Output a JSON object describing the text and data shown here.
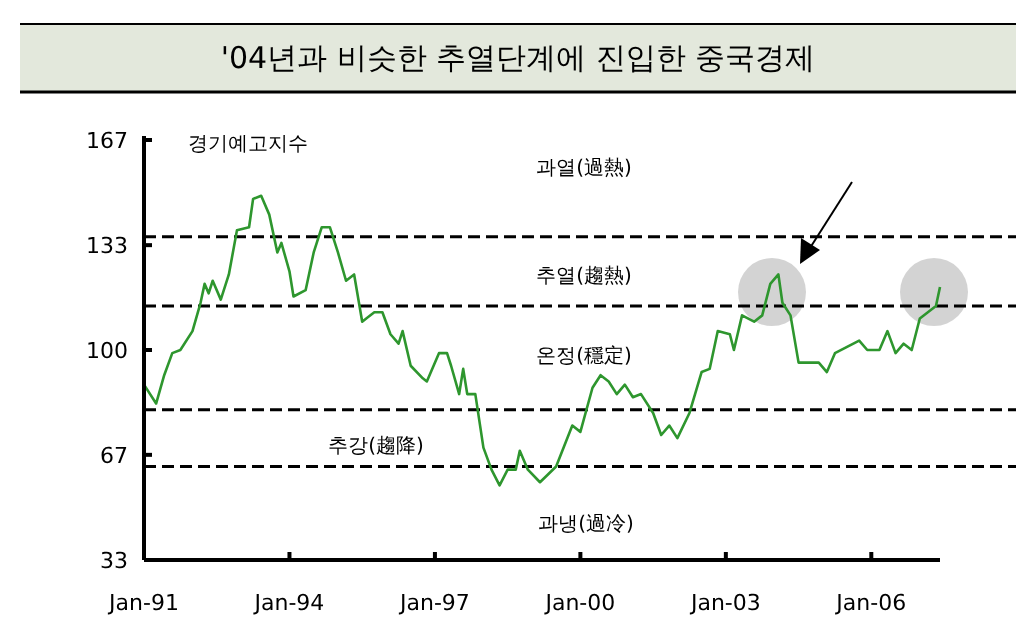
{
  "chart_data": {
    "type": "line",
    "title": "'04년과 비슷한 추열단계에 진입한 중국경제",
    "ylabel": "경기예고지수",
    "x": [
      "1991-01",
      "1991-04",
      "1991-06",
      "1991-08",
      "1991-10",
      "1992-01",
      "1992-03",
      "1992-04",
      "1992-05",
      "1992-06",
      "1992-08",
      "1992-10",
      "1992-12",
      "1993-03",
      "1993-04",
      "1993-06",
      "1993-08",
      "1993-10",
      "1993-11",
      "1994-01",
      "1994-02",
      "1994-05",
      "1994-07",
      "1994-09",
      "1994-11",
      "1995-01",
      "1995-03",
      "1995-05",
      "1995-07",
      "1995-08",
      "1995-10",
      "1995-12",
      "1996-02",
      "1996-04",
      "1996-05",
      "1996-07",
      "1996-10",
      "1996-11",
      "1997-02",
      "1997-04",
      "1997-05",
      "1997-07",
      "1997-08",
      "1997-09",
      "1997-11",
      "1998-01",
      "1998-03",
      "1998-05",
      "1998-07",
      "1998-09",
      "1998-10",
      "1998-12",
      "1999-03",
      "1999-07",
      "1999-11",
      "2000-01",
      "2000-04",
      "2000-06",
      "2000-08",
      "2000-10",
      "2000-12",
      "2001-02",
      "2001-04",
      "2001-07",
      "2001-09",
      "2001-11",
      "2002-01",
      "2002-04",
      "2002-07",
      "2002-09",
      "2002-11",
      "2003-02",
      "2003-03",
      "2003-05",
      "2003-08",
      "2003-10",
      "2003-12",
      "2004-02",
      "2004-03",
      "2004-05",
      "2004-07",
      "2004-12",
      "2005-02",
      "2005-04",
      "2005-07",
      "2005-10",
      "2005-12",
      "2006-03",
      "2006-05",
      "2006-07",
      "2006-09",
      "2006-11",
      "2007-01",
      "2007-03",
      "2007-05",
      "2007-06"
    ],
    "series": [
      {
        "color": "#2e962e",
        "values": [
          89,
          83,
          92,
          99,
          100,
          106,
          115,
          121,
          118,
          122,
          116,
          124,
          138,
          139,
          148,
          149,
          143,
          131,
          134,
          125,
          117,
          119,
          131,
          139,
          139,
          131,
          122,
          124,
          109,
          110,
          112,
          112,
          105,
          102,
          106,
          95,
          91,
          90,
          99,
          99,
          95,
          86,
          94,
          86,
          86,
          69,
          62,
          57,
          62,
          62,
          68,
          62,
          58,
          63,
          76,
          74,
          88,
          92,
          90,
          86,
          89,
          85,
          86,
          80,
          73,
          76,
          72,
          80,
          93,
          94,
          106,
          105,
          100,
          111,
          109,
          111,
          121,
          124,
          115,
          111,
          96,
          96,
          93,
          99,
          101,
          103,
          100,
          100,
          106,
          99,
          102,
          100,
          110,
          112,
          114,
          120
        ]
      }
    ],
    "xlim": [
      "1991-01",
      "2007-06"
    ],
    "xticks": [
      {
        "value": "1991-01",
        "label": "Jan-91"
      },
      {
        "value": "1994-01",
        "label": "Jan-94"
      },
      {
        "value": "1997-01",
        "label": "Jan-97"
      },
      {
        "value": "2000-01",
        "label": "Jan-00"
      },
      {
        "value": "2003-01",
        "label": "Jan-03"
      },
      {
        "value": "2006-01",
        "label": "Jan-06"
      }
    ],
    "ylim": [
      33.3,
      166.7
    ],
    "yticks": [
      {
        "value": 33.3,
        "label": "33"
      },
      {
        "value": 66.7,
        "label": "67"
      },
      {
        "value": 100,
        "label": "100"
      },
      {
        "value": 133.3,
        "label": "133"
      },
      {
        "value": 166.7,
        "label": "167"
      }
    ],
    "ref_lines": [
      {
        "axis": "y",
        "value": 136,
        "line_style": "dashed",
        "color": "#000000"
      },
      {
        "axis": "y",
        "value": 114,
        "line_style": "dashed",
        "color": "#000000"
      },
      {
        "axis": "y",
        "value": 81,
        "line_style": "dashed",
        "color": "#000000"
      },
      {
        "axis": "y",
        "value": 63,
        "line_style": "dashed",
        "color": "#000000"
      }
    ],
    "annotations": [
      "과열(過熱)",
      "추열(趨熱)",
      "온정(穩定)",
      "추강(趨降)",
      "과냉(過冷)"
    ]
  }
}
